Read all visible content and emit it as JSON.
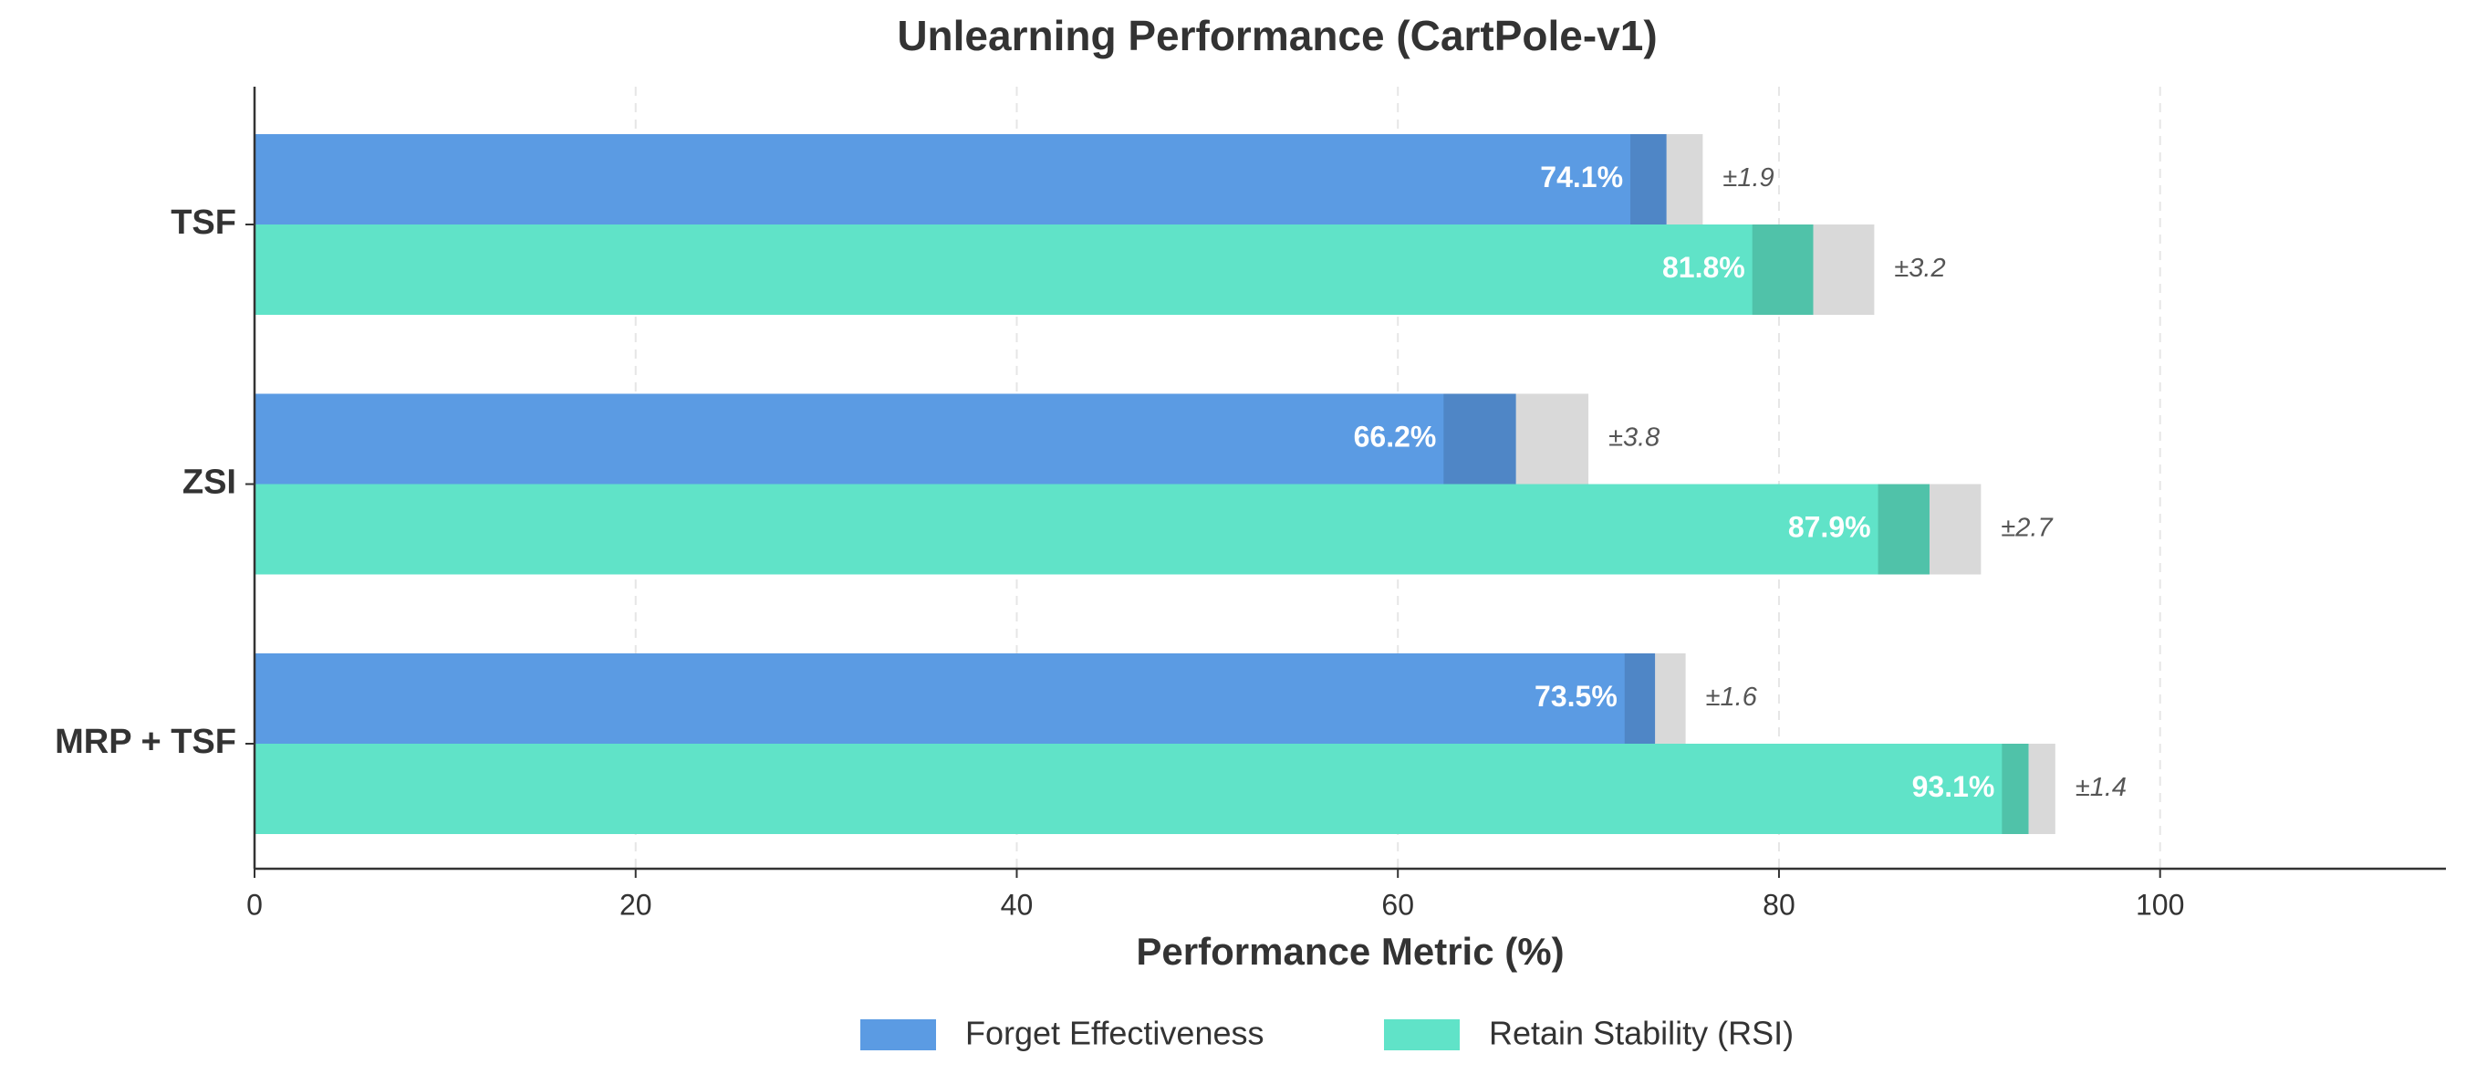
{
  "chart_data": {
    "type": "bar",
    "orientation": "horizontal",
    "title": "Unlearning Performance (CartPole-v1)",
    "x_label": "Performance Metric (%)",
    "categories": [
      "TSF",
      "ZSI",
      "MRP + TSF"
    ],
    "series": [
      {
        "name": "Forget Effectiveness",
        "color": "#5b9be3",
        "error_color": "#4f86c6",
        "values": [
          74.1,
          66.2,
          73.5
        ],
        "value_labels": [
          "74.1%",
          "66.2%",
          "73.5%"
        ],
        "errors": [
          1.9,
          3.8,
          1.6
        ],
        "error_labels": [
          "±1.9",
          "±3.8",
          "±1.6"
        ]
      },
      {
        "name": "Retain Stability (RSI)",
        "color": "#60e3c8",
        "error_color": "#50c2a9",
        "values": [
          81.8,
          87.9,
          93.1
        ],
        "value_labels": [
          "81.8%",
          "87.9%",
          "93.1%"
        ],
        "errors": [
          3.2,
          2.7,
          1.4
        ],
        "error_labels": [
          "±3.2",
          "±2.7",
          "±1.4"
        ]
      }
    ],
    "xlim": [
      0,
      115
    ],
    "xticks": [
      0,
      20,
      40,
      60,
      80,
      100
    ],
    "grid": true
  }
}
